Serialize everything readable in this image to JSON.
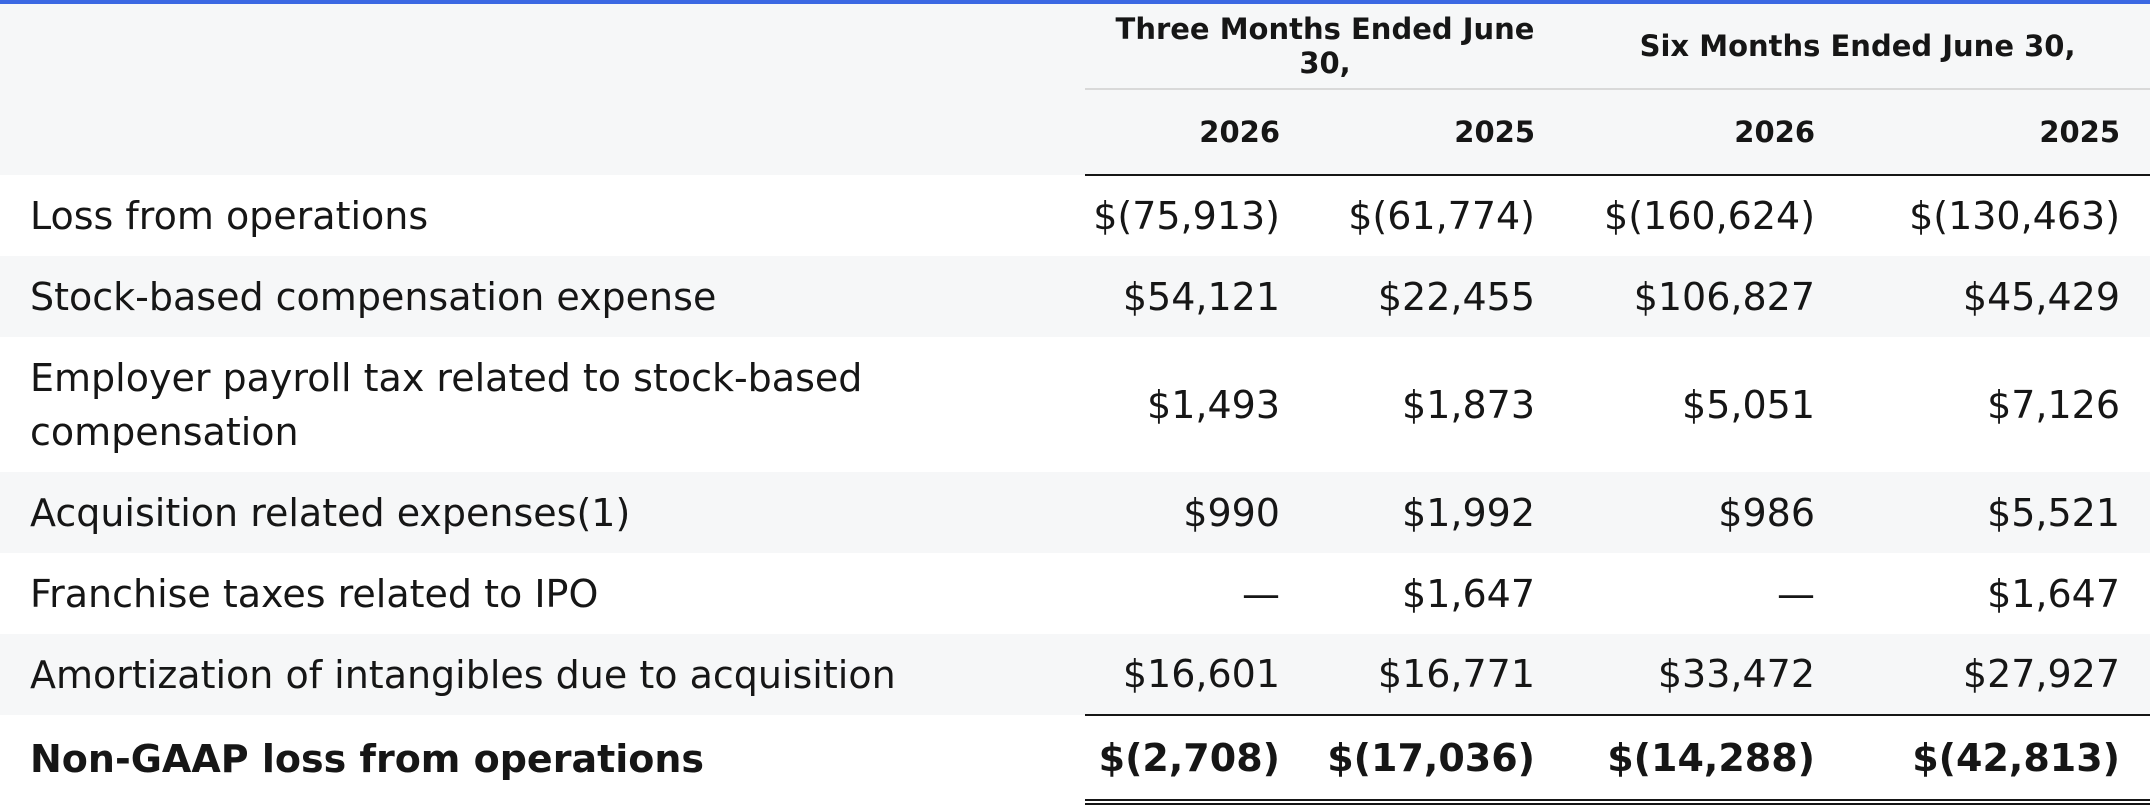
{
  "table": {
    "group_headers": [
      "Three Months Ended June 30,",
      "Six Months Ended June 30,"
    ],
    "year_headers": [
      "2026",
      "2025",
      "2026",
      "2025"
    ],
    "rows": [
      {
        "label": "Loss from operations",
        "values": [
          "$(75,913)",
          "$(61,774)",
          "$(160,624)",
          "$(130,463)"
        ]
      },
      {
        "label": "Stock-based compensation expense",
        "values": [
          "$54,121",
          "$22,455",
          "$106,827",
          "$45,429"
        ]
      },
      {
        "label": "Employer payroll tax related to stock-based compensation",
        "values": [
          "$1,493",
          "$1,873",
          "$5,051",
          "$7,126"
        ]
      },
      {
        "label": "Acquisition related expenses(1)",
        "values": [
          "$990",
          "$1,992",
          "$986",
          "$5,521"
        ]
      },
      {
        "label": "Franchise taxes related to IPO",
        "values": [
          "—",
          "$1,647",
          "—",
          "$1,647"
        ]
      },
      {
        "label": "Amortization of intangibles due to acquisition",
        "values": [
          "$16,601",
          "$16,771",
          "$33,472",
          "$27,927"
        ]
      }
    ],
    "total": {
      "label": "Non-GAAP loss from operations",
      "values": [
        "$(2,708)",
        "$(17,036)",
        "$(14,288)",
        "$(42,813)"
      ]
    }
  },
  "colors": {
    "accent_top_line": "#3b68e3",
    "header_background": "#f6f7f8",
    "alternate_row_background": "#f6f7f8",
    "text": "#161616"
  }
}
